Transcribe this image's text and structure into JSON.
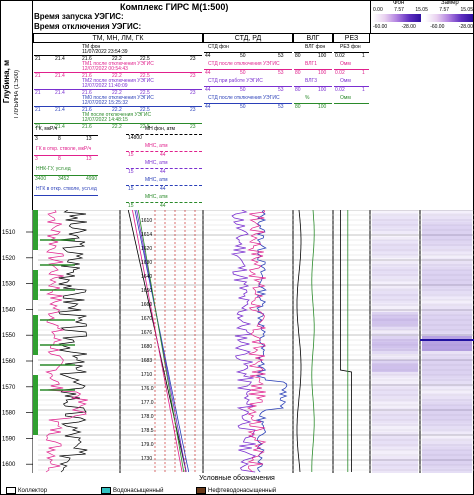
{
  "title": "Комплекс ГИРС М(1:500)",
  "header": {
    "start_label": "Время запуска УЭГИС:",
    "stop_label": "Время отключения УЭГИС:",
    "depth_axis_label": "Глубина, м",
    "depth_scale_label": "ГЛУБИНА (1:500)",
    "scale_bar": {
      "phase_label": "Фон",
      "zamer_label": "Замер",
      "ticks_top": [
        "0.00",
        "7.57",
        "15.05",
        "7.57",
        "15.05"
      ],
      "ticks_bot": [
        "-60.00",
        "-28.00",
        "-60.00",
        "-28.00"
      ]
    }
  },
  "columns": {
    "col1": "ТМ, МН, ЛМ, ГК",
    "col2": "СТД, РД",
    "col3": "ВЛГ",
    "col4": "РЕЗ"
  },
  "curve_headers": [
    {
      "name": "ТМ фон",
      "date": "11/07/2022 23:54:39",
      "left": "21",
      "mid1": "21.4",
      "mid2": "21.6",
      "right": "22.2",
      "right2": "22.5",
      "end": "23",
      "color": "#000000"
    },
    {
      "name": "ТМ1 после отключения УЭГИС",
      "date": "12/07/2022 00:54:43",
      "left": "21",
      "mid1": "21.4",
      "mid2": "21.6",
      "right": "22.2",
      "right2": "22.5",
      "end": "23",
      "color": "#e0208c"
    },
    {
      "name": "ТМ2 после отключения УЭГИС",
      "date": "12/07/2022 11:40:09",
      "left": "21",
      "mid1": "21.4",
      "mid2": "21.6",
      "right": "22.2",
      "right2": "22.5",
      "end": "23",
      "color": "#7a2fd0"
    },
    {
      "name": "ТМ0 после отключения УЭГИС",
      "date": "12/07/2022 15:25:32",
      "left": "21",
      "mid1": "21.4",
      "mid2": "21.6",
      "right": "22.2",
      "right2": "22.5",
      "end": "23",
      "color": "#2a3fb8"
    },
    {
      "name": "ТМ после отключения УЭГИС",
      "date": "12/07/2022 14:48:15",
      "left": "21",
      "mid1": "21.4",
      "mid2": "21.6",
      "right": "22.2",
      "right2": "22.5",
      "end": "23",
      "color": "#2a8a2a"
    }
  ],
  "std_headers": [
    {
      "name": "СТД фон",
      "a": "44",
      "b": "50",
      "c": "53",
      "color": "#000000"
    },
    {
      "name": "СТД после отключения УЭГИС",
      "a": "44",
      "b": "50",
      "c": "53",
      "color": "#e0208c"
    },
    {
      "name": "СТД при работе УЭГИС",
      "a": "44",
      "b": "50",
      "c": "53",
      "color": "#7a2fd0"
    },
    {
      "name": "СТД после отключения УЭГИС",
      "a": "44",
      "b": "50",
      "c": "53",
      "color": "#2a3fb8"
    }
  ],
  "vlg_headers": [
    {
      "name": "ВЛГ фон",
      "a": "80",
      "b": "100",
      "color": "#000000"
    },
    {
      "name": "ВЛГ1",
      "a": "80",
      "b": "100",
      "color": "#e0208c"
    },
    {
      "name": "ВЛГ3",
      "a": "80",
      "b": "100",
      "color": "#7a2fd0"
    },
    {
      "name": "%",
      "a": "80",
      "b": "100",
      "color": "#2a8a2a"
    }
  ],
  "rez_headers": [
    {
      "name": "РЕЗ фон",
      "a": "0.02",
      "b": "1",
      "color": "#000000"
    },
    {
      "name": "Омм",
      "a": "0.02",
      "b": "1",
      "color": "#e0208c"
    },
    {
      "name": "Омм",
      "a": "0.02",
      "b": "1",
      "color": "#7a2fd0"
    },
    {
      "name": "Омм",
      "a": "",
      "b": "",
      "color": "#2a8a2a"
    }
  ],
  "gk_headers": [
    {
      "name": "ГК, мкР/ч",
      "a": "3",
      "b": "8",
      "c": "13",
      "color": "#000000"
    },
    {
      "name": "ГК в откр. стволе, мкР/ч",
      "a": "3",
      "b": "8",
      "c": "13",
      "color": "#e0208c"
    },
    {
      "name": "ННК-ГУ, усл.ед",
      "a": "3400",
      "b": "3452",
      "c": "4990",
      "color": "#2a8a2a"
    },
    {
      "name": "НГК в откр. стволе, усл.ед",
      "a": "",
      "b": "",
      "c": "",
      "color": "#2a3fb8"
    }
  ],
  "mn_headers": [
    {
      "name": "МН фон, атм",
      "a": "14800",
      "b": "",
      "color": "#000000"
    },
    {
      "name": "МНС, атм",
      "a": "15",
      "b": "44",
      "color": "#e0208c"
    },
    {
      "name": "МНС, атм",
      "a": "15",
      "b": "44",
      "color": "#7a2fd0"
    },
    {
      "name": "МНС, атм",
      "a": "15",
      "b": "44",
      "color": "#2a3fb8"
    },
    {
      "name": "МНС, атм",
      "a": "15",
      "b": "44",
      "color": "#2a8a2a"
    }
  ],
  "depth_ticks": [
    "1510",
    "1520",
    "1530",
    "1540",
    "1550",
    "1560",
    "1570",
    "1580",
    "1590",
    "1600"
  ],
  "pressure_labels": [
    "1610",
    "1614",
    "1620",
    "1630",
    "1640",
    "1650",
    "1660",
    "1670",
    "1676",
    "1680",
    "1683",
    "1710",
    "176.0",
    "177.0",
    "178.0",
    "178.5",
    "179.0",
    "1730"
  ],
  "legend": {
    "title": "Условные обозначения",
    "items": [
      {
        "label": "Коллектор",
        "color": "#ffffff"
      },
      {
        "label": "Водонасыщенный",
        "color": "#30c0c0"
      },
      {
        "label": "Нефтеводонасыщенный",
        "color": "#6a3a1a"
      }
    ]
  },
  "colors": {
    "black": "#000000",
    "pink": "#e0208c",
    "purple": "#7a2fd0",
    "blue": "#2a3fb8",
    "green": "#2a8a2a",
    "red": "#c01010"
  }
}
